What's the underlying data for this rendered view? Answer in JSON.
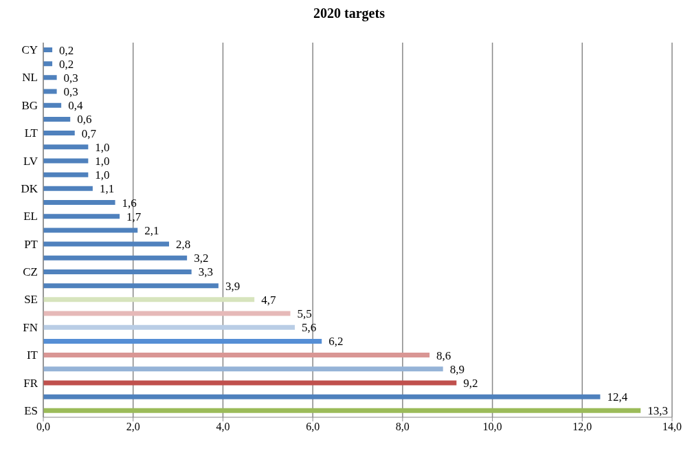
{
  "chart_data": {
    "type": "bar",
    "orientation": "horizontal",
    "title": "2020 targets",
    "categories": [
      "CY",
      null,
      "NL",
      null,
      "BG",
      null,
      "LT",
      null,
      "LV",
      null,
      "DK",
      null,
      "EL",
      null,
      "PT",
      null,
      "CZ",
      null,
      "SE",
      null,
      "FN",
      null,
      "IT",
      null,
      "FR",
      null,
      "ES"
    ],
    "values": [
      0.2,
      0.2,
      0.3,
      0.3,
      0.4,
      0.6,
      0.7,
      1.0,
      1.0,
      1.0,
      1.1,
      1.6,
      1.7,
      2.1,
      2.8,
      3.2,
      3.3,
      3.9,
      4.7,
      5.5,
      5.6,
      6.2,
      8.6,
      8.9,
      9.2,
      12.4,
      13.3
    ],
    "value_labels": [
      "0,2",
      "0,2",
      "0,3",
      "0,3",
      "0,4",
      "0,6",
      "0,7",
      "1,0",
      "1,0",
      "1,0",
      "1,1",
      "1,6",
      "1,7",
      "2,1",
      "2,8",
      "3,2",
      "3,3",
      "3,9",
      "4,7",
      "5,5",
      "5,6",
      "6,2",
      "8,6",
      "8,9",
      "9,2",
      "12,4",
      "13,3"
    ],
    "colors": [
      "#4f81bd",
      "#4f81bd",
      "#4f81bd",
      "#4f81bd",
      "#4f81bd",
      "#4f81bd",
      "#4f81bd",
      "#4f81bd",
      "#4f81bd",
      "#4f81bd",
      "#4f81bd",
      "#4f81bd",
      "#4f81bd",
      "#4f81bd",
      "#4f81bd",
      "#4f81bd",
      "#4f81bd",
      "#4f81bd",
      "#d7e4bd",
      "#e6b9b8",
      "#b9cde5",
      "#558ed5",
      "#d99694",
      "#95b3d7",
      "#c0504d",
      "#4f81bd",
      "#9bbb59"
    ],
    "xlim": [
      0,
      14
    ],
    "xticks": [
      {
        "value": 0,
        "label": "0,0"
      },
      {
        "value": 2,
        "label": "2,0"
      },
      {
        "value": 4,
        "label": "4,0"
      },
      {
        "value": 6,
        "label": "6,0"
      },
      {
        "value": 8,
        "label": "8,0"
      },
      {
        "value": 10,
        "label": "10,0"
      },
      {
        "value": 12,
        "label": "12,0"
      },
      {
        "value": 14,
        "label": "14,0"
      }
    ],
    "grid": "x"
  }
}
